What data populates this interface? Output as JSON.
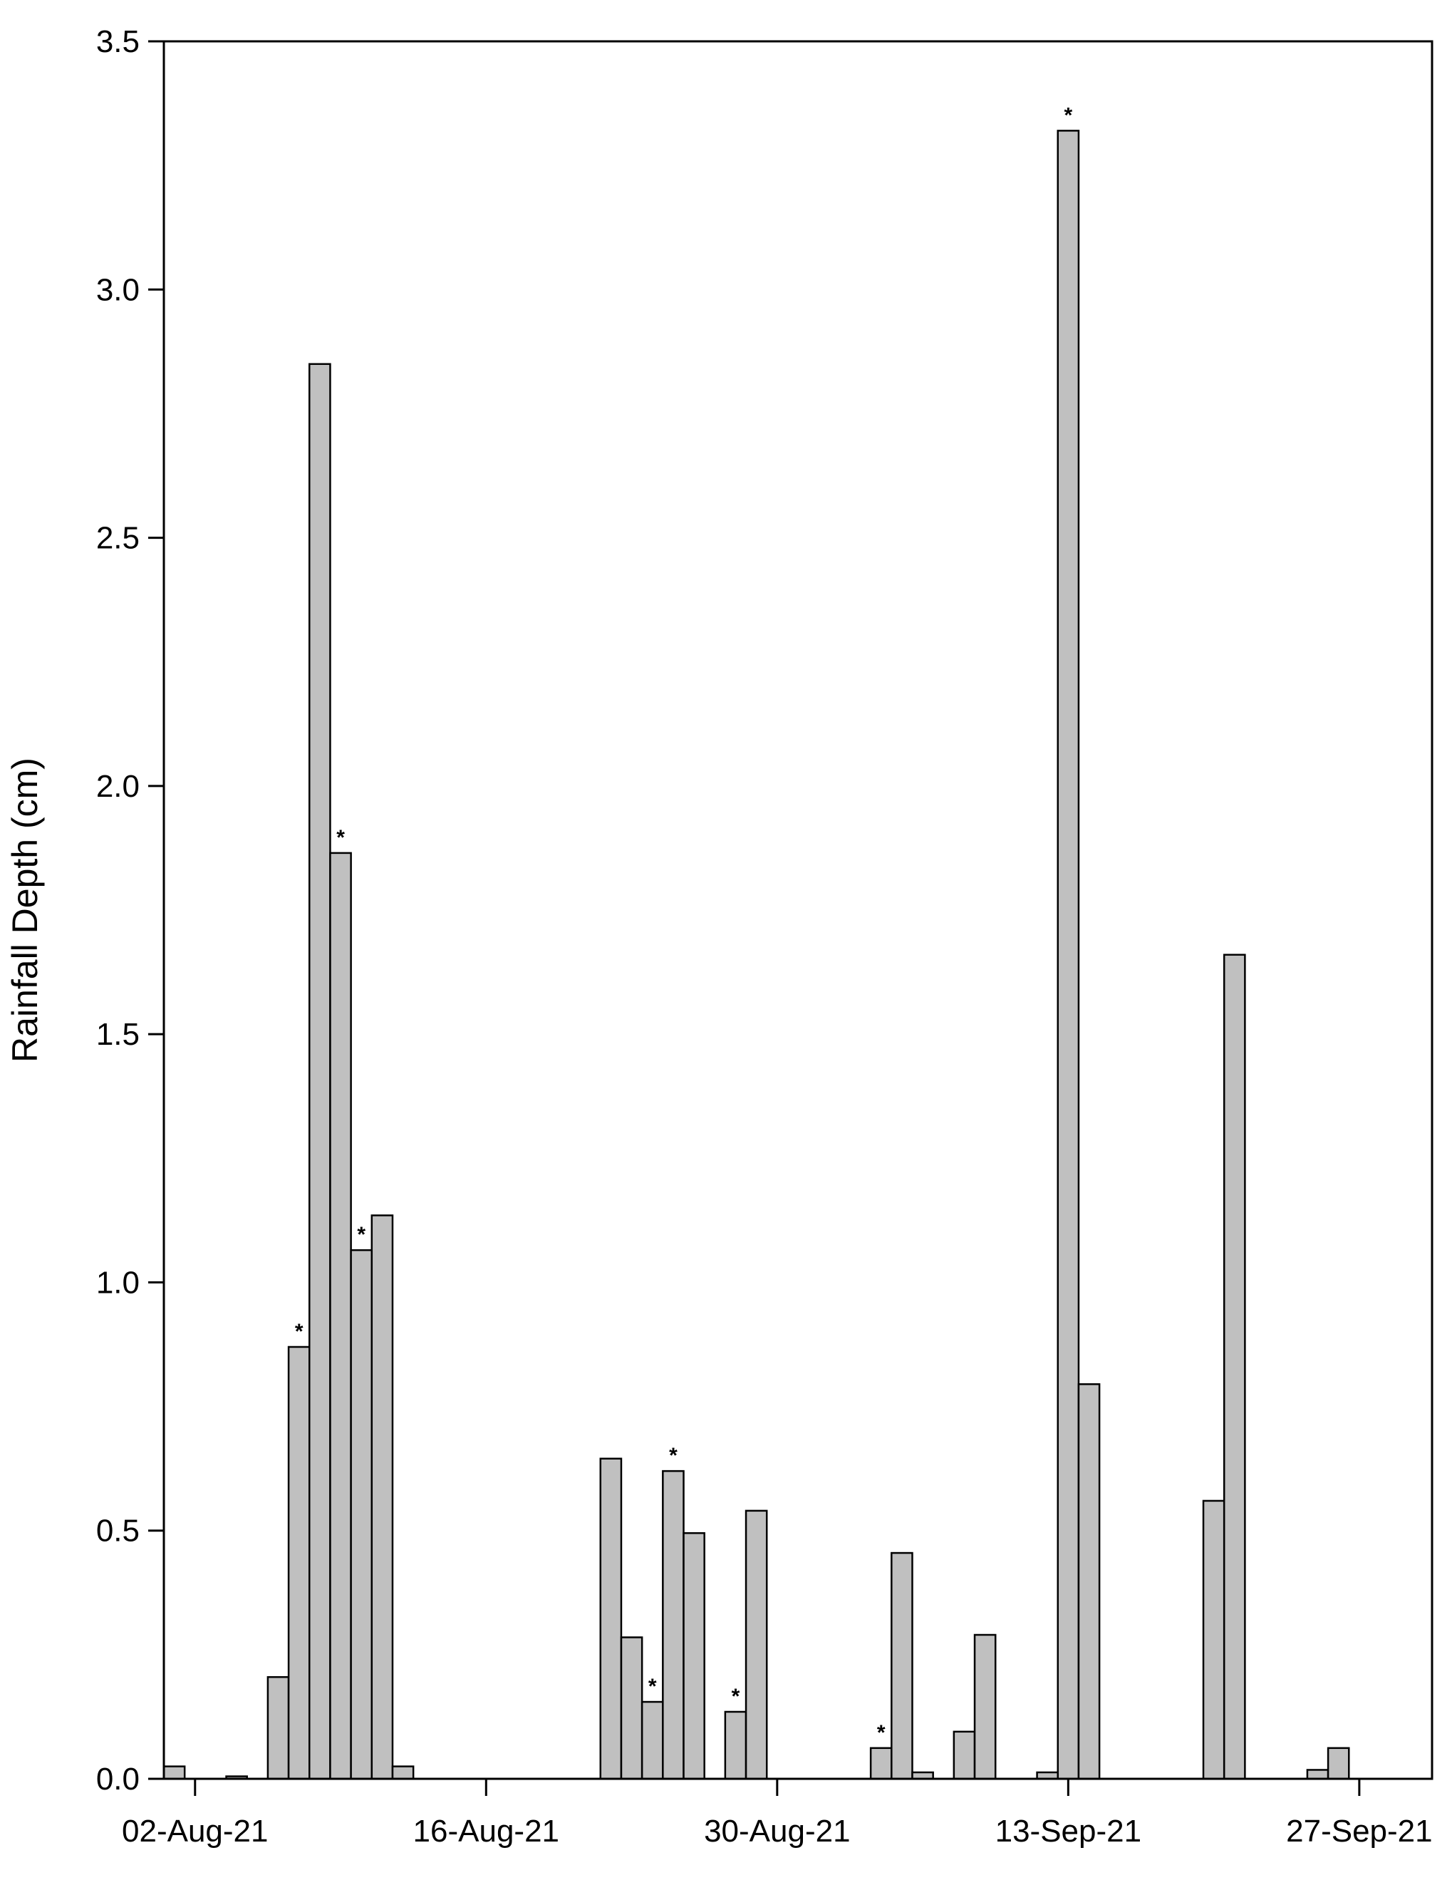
{
  "chart_data": {
    "type": "bar",
    "title": "",
    "xlabel": "",
    "ylabel": "Rainfall Depth (cm)",
    "ylim": [
      0,
      3.5
    ],
    "yticks": [
      "0.0",
      "0.5",
      "1.0",
      "1.5",
      "2.0",
      "2.5",
      "3.0",
      "3.5"
    ],
    "xlim": [
      "2021-08-01",
      "2021-09-30"
    ],
    "xticks": [
      {
        "date": "2021-08-02",
        "label": "02-Aug-21"
      },
      {
        "date": "2021-08-16",
        "label": "16-Aug-21"
      },
      {
        "date": "2021-08-30",
        "label": "30-Aug-21"
      },
      {
        "date": "2021-09-13",
        "label": "13-Sep-21"
      },
      {
        "date": "2021-09-27",
        "label": "27-Sep-21"
      }
    ],
    "grid": false,
    "legend": "none",
    "bar_color": "#c0c0c0",
    "bar_edge_color": "#000000",
    "bars": [
      {
        "date": "2021-08-01",
        "value": 0.025,
        "label": ""
      },
      {
        "date": "2021-08-04",
        "value": 0.005,
        "label": ""
      },
      {
        "date": "2021-08-06",
        "value": 0.205,
        "label": ""
      },
      {
        "date": "2021-08-07",
        "value": 0.87,
        "label": "*"
      },
      {
        "date": "2021-08-08",
        "value": 2.85,
        "label": ""
      },
      {
        "date": "2021-08-09",
        "value": 1.865,
        "label": "*"
      },
      {
        "date": "2021-08-10",
        "value": 1.065,
        "label": "*"
      },
      {
        "date": "2021-08-11",
        "value": 1.135,
        "label": ""
      },
      {
        "date": "2021-08-12",
        "value": 0.025,
        "label": ""
      },
      {
        "date": "2021-08-22",
        "value": 0.645,
        "label": ""
      },
      {
        "date": "2021-08-23",
        "value": 0.285,
        "label": ""
      },
      {
        "date": "2021-08-24",
        "value": 0.155,
        "label": "*"
      },
      {
        "date": "2021-08-25",
        "value": 0.62,
        "label": "*"
      },
      {
        "date": "2021-08-26",
        "value": 0.495,
        "label": ""
      },
      {
        "date": "2021-08-28",
        "value": 0.135,
        "label": "*"
      },
      {
        "date": "2021-08-29",
        "value": 0.54,
        "label": ""
      },
      {
        "date": "2021-09-04",
        "value": 0.062,
        "label": "*"
      },
      {
        "date": "2021-09-05",
        "value": 0.455,
        "label": ""
      },
      {
        "date": "2021-09-06",
        "value": 0.013,
        "label": ""
      },
      {
        "date": "2021-09-08",
        "value": 0.095,
        "label": ""
      },
      {
        "date": "2021-09-09",
        "value": 0.29,
        "label": ""
      },
      {
        "date": "2021-09-12",
        "value": 0.013,
        "label": ""
      },
      {
        "date": "2021-09-13",
        "value": 3.32,
        "label": "*"
      },
      {
        "date": "2021-09-14",
        "value": 0.795,
        "label": ""
      },
      {
        "date": "2021-09-20",
        "value": 0.56,
        "label": ""
      },
      {
        "date": "2021-09-21",
        "value": 1.66,
        "label": ""
      },
      {
        "date": "2021-09-25",
        "value": 0.018,
        "label": ""
      },
      {
        "date": "2021-09-26",
        "value": 0.062,
        "label": ""
      }
    ]
  }
}
